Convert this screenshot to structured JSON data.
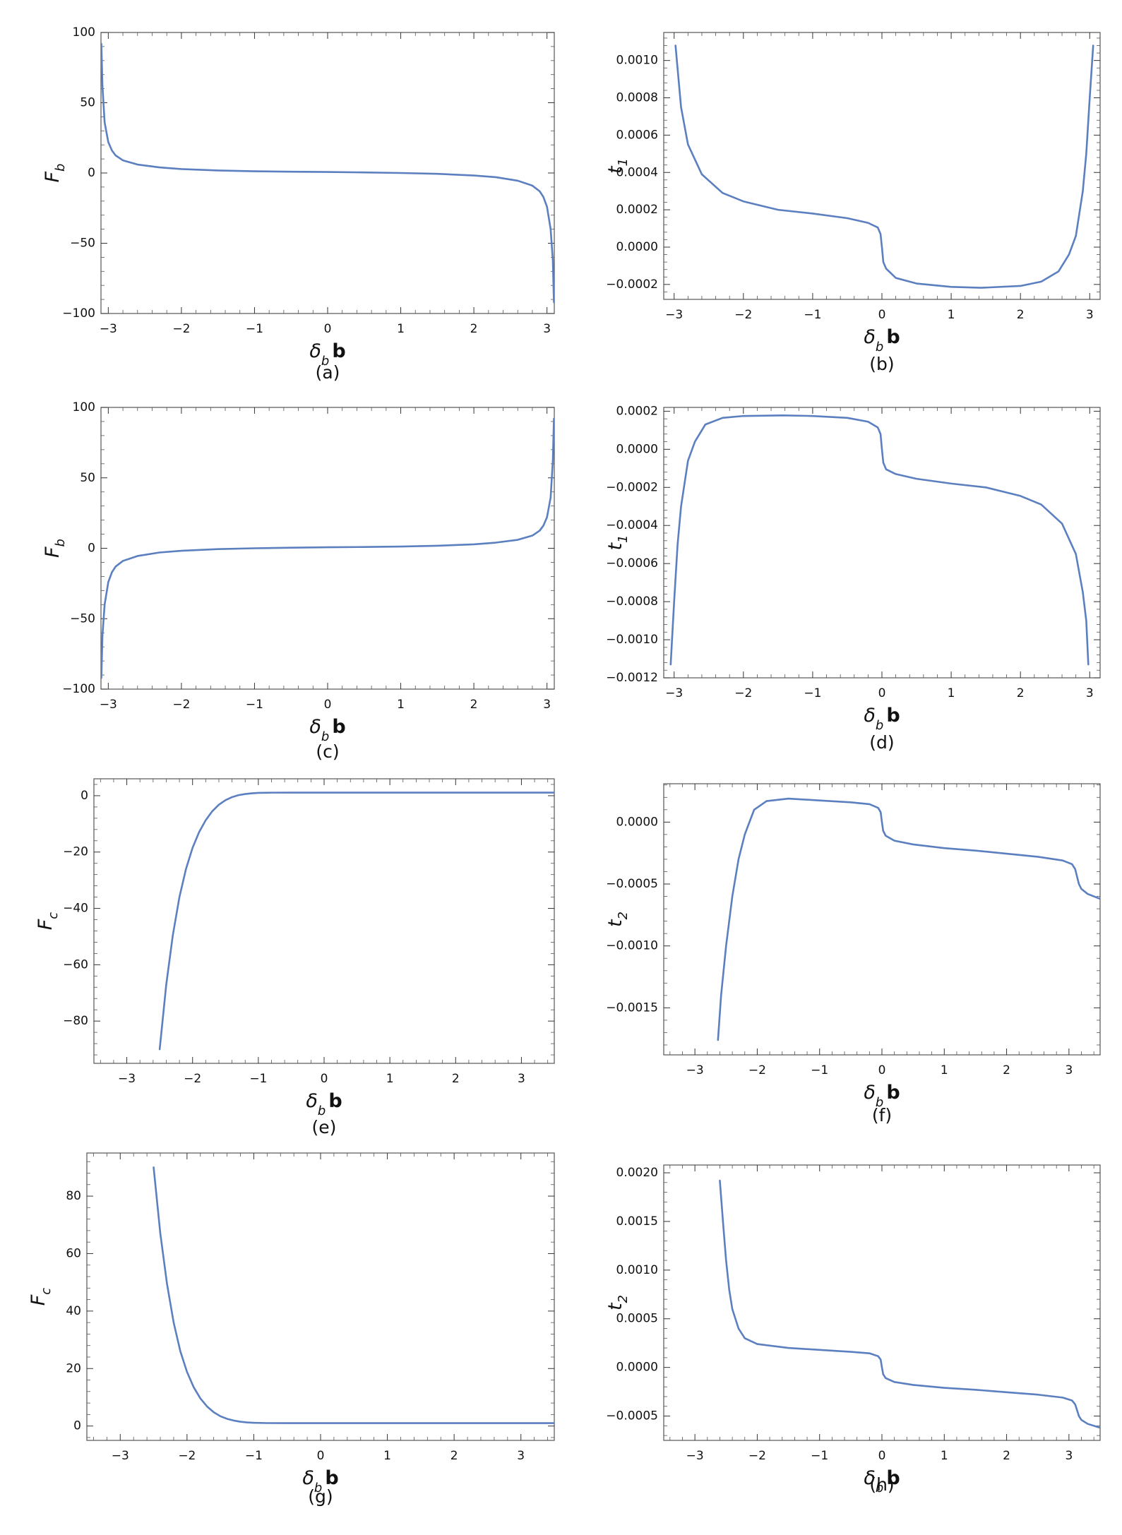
{
  "chart_data": [
    {
      "panel": "(a)",
      "type": "line",
      "xlabel": "δ_b b",
      "ylabel": "F_b",
      "xlim": [
        -3.1,
        3.1
      ],
      "ylim": [
        -100,
        100
      ],
      "xticks": [
        -3,
        -2,
        -1,
        0,
        1,
        2,
        3
      ],
      "yticks": [
        -100,
        -50,
        0,
        50,
        100
      ],
      "yticklabels": [
        "−100",
        "−50",
        "0",
        "50",
        "100"
      ],
      "line_color": "#5b7fbf",
      "series": [
        {
          "x": [
            -3.095,
            -3.08,
            -3.05,
            -3.0,
            -2.95,
            -2.9,
            -2.8,
            -2.6,
            -2.3,
            -2.0,
            -1.5,
            -1.0,
            -0.5,
            0,
            0.5,
            1.0,
            1.5,
            2.0,
            2.3,
            2.6,
            2.8,
            2.9,
            2.95,
            3.0,
            3.05,
            3.08,
            3.095
          ],
          "y": [
            92,
            62,
            36,
            22,
            16,
            12.5,
            9,
            6,
            4,
            2.8,
            1.8,
            1.2,
            0.9,
            0.7,
            0.4,
            0,
            -0.6,
            -1.8,
            -3,
            -5.5,
            -9,
            -13,
            -17,
            -24,
            -40,
            -62,
            -92
          ]
        }
      ]
    },
    {
      "panel": "(b)",
      "type": "line",
      "xlabel": "δ_b b",
      "ylabel": "t_1",
      "xlim": [
        -3.15,
        3.15
      ],
      "ylim": [
        -0.00028,
        0.00115
      ],
      "xticks": [
        -3,
        -2,
        -1,
        0,
        1,
        2,
        3
      ],
      "yticks": [
        -0.0002,
        0.0,
        0.0002,
        0.0004,
        0.0006,
        0.0008,
        0.001
      ],
      "yticklabels": [
        "−0.0002",
        "0.0000",
        "0.0002",
        "0.0004",
        "0.0006",
        "0.0008",
        "0.0010"
      ],
      "line_color": "#5b7fbf",
      "series": [
        {
          "x": [
            -2.98,
            -2.9,
            -2.8,
            -2.6,
            -2.3,
            -2.0,
            -1.5,
            -1.0,
            -0.5,
            -0.2,
            -0.06,
            -0.02,
            0.0,
            0.02,
            0.06,
            0.2,
            0.5,
            1.0,
            1.43,
            2.0,
            2.3,
            2.55,
            2.7,
            2.8,
            2.9,
            2.95,
            3.0,
            3.05
          ],
          "y": [
            0.00108,
            0.00075,
            0.00055,
            0.00039,
            0.00029,
            0.000245,
            0.0002,
            0.00018,
            0.000155,
            0.00013,
            0.000105,
            7e-05,
            0.0,
            -8e-05,
            -0.000115,
            -0.000165,
            -0.000195,
            -0.000213,
            -0.000218,
            -0.000208,
            -0.000185,
            -0.00013,
            -4e-05,
            6e-05,
            0.0003,
            0.0005,
            0.0008,
            0.00108
          ]
        }
      ]
    },
    {
      "panel": "(c)",
      "type": "line",
      "xlabel": "δ_b b",
      "ylabel": "F_b",
      "xlim": [
        -3.1,
        3.1
      ],
      "ylim": [
        -100,
        100
      ],
      "xticks": [
        -3,
        -2,
        -1,
        0,
        1,
        2,
        3
      ],
      "yticks": [
        -100,
        -50,
        0,
        50,
        100
      ],
      "yticklabels": [
        "−100",
        "−50",
        "0",
        "50",
        "100"
      ],
      "line_color": "#5b7fbf",
      "series": [
        {
          "x": [
            -3.095,
            -3.08,
            -3.05,
            -3.0,
            -2.95,
            -2.9,
            -2.8,
            -2.6,
            -2.3,
            -2.0,
            -1.5,
            -1.0,
            -0.5,
            0,
            0.5,
            1.0,
            1.5,
            2.0,
            2.3,
            2.6,
            2.8,
            2.9,
            2.95,
            3.0,
            3.05,
            3.08,
            3.095
          ],
          "y": [
            -92,
            -62,
            -40,
            -24,
            -17,
            -13,
            -9,
            -5.5,
            -3,
            -1.8,
            -0.6,
            0,
            0.4,
            0.7,
            0.9,
            1.2,
            1.8,
            2.8,
            4,
            6,
            9,
            12.5,
            16,
            22,
            36,
            62,
            92
          ]
        }
      ]
    },
    {
      "panel": "(d)",
      "type": "line",
      "xlabel": "δ_b b",
      "ylabel": "t_1",
      "xlim": [
        -3.15,
        3.15
      ],
      "ylim": [
        -0.0012,
        0.00022
      ],
      "xticks": [
        -3,
        -2,
        -1,
        0,
        1,
        2,
        3
      ],
      "yticks": [
        -0.0012,
        -0.001,
        -0.0008,
        -0.0006,
        -0.0004,
        -0.0002,
        0.0,
        0.0002
      ],
      "yticklabels": [
        "−0.0012",
        "−0.0010",
        "−0.0008",
        "−0.0006",
        "−0.0004",
        "−0.0002",
        "0.0000",
        "0.0002"
      ],
      "line_color": "#5b7fbf",
      "series": [
        {
          "x": [
            -3.05,
            -3.0,
            -2.95,
            -2.9,
            -2.8,
            -2.7,
            -2.55,
            -2.3,
            -2.0,
            -1.43,
            -1.0,
            -0.5,
            -0.2,
            -0.06,
            -0.02,
            0.0,
            0.02,
            0.06,
            0.2,
            0.5,
            1.0,
            1.5,
            2.0,
            2.3,
            2.6,
            2.8,
            2.9,
            2.95,
            2.98
          ],
          "y": [
            -0.00113,
            -0.0008,
            -0.0005,
            -0.0003,
            -6e-05,
            4e-05,
            0.00013,
            0.000165,
            0.000175,
            0.000178,
            0.000175,
            0.000165,
            0.000145,
            0.000115,
            8e-05,
            0.0,
            -7e-05,
            -0.000105,
            -0.00013,
            -0.000155,
            -0.00018,
            -0.0002,
            -0.000245,
            -0.00029,
            -0.00039,
            -0.00055,
            -0.00075,
            -0.0009,
            -0.00113
          ]
        }
      ]
    },
    {
      "panel": "(e)",
      "type": "line",
      "xlabel": "δ_b b",
      "ylabel": "F_c",
      "xlim": [
        -3.5,
        3.5
      ],
      "ylim": [
        -95,
        6
      ],
      "xticks": [
        -3,
        -2,
        -1,
        0,
        1,
        2,
        3
      ],
      "yticks": [
        -80,
        -60,
        -40,
        -20,
        0
      ],
      "yticklabels": [
        "−80",
        "−60",
        "−40",
        "−20",
        "0"
      ],
      "line_color": "#5b7fbf",
      "series": [
        {
          "x": [
            -2.5,
            -2.4,
            -2.3,
            -2.2,
            -2.1,
            -2.0,
            -1.9,
            -1.8,
            -1.7,
            -1.6,
            -1.5,
            -1.4,
            -1.3,
            -1.2,
            -1.1,
            -1.0,
            -0.8,
            -0.5,
            0,
            1,
            2,
            3,
            3.5
          ],
          "y": [
            -90,
            -67,
            -49.5,
            -36,
            -26,
            -18.5,
            -12.9,
            -8.7,
            -5.5,
            -3.2,
            -1.6,
            -0.5,
            0.2,
            0.6,
            0.85,
            1.0,
            1.08,
            1.1,
            1.1,
            1.1,
            1.1,
            1.1,
            1.1
          ]
        }
      ]
    },
    {
      "panel": "(f)",
      "type": "line",
      "xlabel": "δ_b b",
      "ylabel": "t_2",
      "xlim": [
        -3.5,
        3.5
      ],
      "ylim": [
        -0.00188,
        0.00031
      ],
      "xticks": [
        -3,
        -2,
        -1,
        0,
        1,
        2,
        3
      ],
      "yticks": [
        -0.0015,
        -0.001,
        -0.0005,
        0.0
      ],
      "yticklabels": [
        "−0.0015",
        "−0.0010",
        "−0.0005",
        "0.0000"
      ],
      "line_color": "#5b7fbf",
      "series": [
        {
          "x": [
            -2.63,
            -2.58,
            -2.5,
            -2.4,
            -2.3,
            -2.2,
            -2.05,
            -1.85,
            -1.5,
            -1.0,
            -0.5,
            -0.2,
            -0.06,
            -0.02,
            0.0,
            0.02,
            0.06,
            0.2,
            0.5,
            1.0,
            1.5,
            2.0,
            2.5,
            2.9,
            3.05,
            3.1,
            3.13,
            3.16,
            3.2,
            3.3,
            3.5
          ],
          "y": [
            -0.00176,
            -0.0014,
            -0.001,
            -0.0006,
            -0.0003,
            -0.0001,
            0.0001,
            0.00017,
            0.00019,
            0.000175,
            0.00016,
            0.000145,
            0.000115,
            8e-05,
            0.0,
            -7e-05,
            -0.00011,
            -0.00015,
            -0.00018,
            -0.00021,
            -0.00023,
            -0.000255,
            -0.00028,
            -0.00031,
            -0.00034,
            -0.00038,
            -0.00044,
            -0.0005,
            -0.00054,
            -0.00058,
            -0.00062
          ]
        }
      ]
    },
    {
      "panel": "(g)",
      "type": "line",
      "xlabel": "δ_b b",
      "ylabel": "F_c",
      "xlim": [
        -3.5,
        3.5
      ],
      "ylim": [
        -5,
        95
      ],
      "xticks": [
        -3,
        -2,
        -1,
        0,
        1,
        2,
        3
      ],
      "yticks": [
        0,
        20,
        40,
        60,
        80
      ],
      "yticklabels": [
        "0",
        "20",
        "40",
        "60",
        "80"
      ],
      "line_color": "#5b7fbf",
      "series": [
        {
          "x": [
            -2.5,
            -2.4,
            -2.3,
            -2.2,
            -2.1,
            -2.0,
            -1.9,
            -1.8,
            -1.7,
            -1.6,
            -1.5,
            -1.4,
            -1.3,
            -1.2,
            -1.1,
            -1.0,
            -0.8,
            -0.5,
            0,
            1,
            2,
            3,
            3.5
          ],
          "y": [
            90,
            67,
            49.5,
            36,
            26,
            18.8,
            13.5,
            9.6,
            6.8,
            4.8,
            3.4,
            2.5,
            1.9,
            1.5,
            1.25,
            1.12,
            1.02,
            1.0,
            1.0,
            1.0,
            1.0,
            1.0,
            1.0
          ]
        }
      ]
    },
    {
      "panel": "(h)",
      "type": "line",
      "xlabel": "δ_b b",
      "ylabel": "t_2",
      "xlim": [
        -3.5,
        3.5
      ],
      "ylim": [
        -0.00075,
        0.00208
      ],
      "xticks": [
        -3,
        -2,
        -1,
        0,
        1,
        2,
        3
      ],
      "yticks": [
        -0.0005,
        0.0,
        0.0005,
        0.001,
        0.0015,
        0.002
      ],
      "yticklabels": [
        "−0.0005",
        "0.0000",
        "0.0005",
        "0.0010",
        "0.0015",
        "0.0020"
      ],
      "line_color": "#5b7fbf",
      "series": [
        {
          "x": [
            -2.6,
            -2.55,
            -2.5,
            -2.45,
            -2.4,
            -2.3,
            -2.2,
            -2.0,
            -1.5,
            -1.0,
            -0.5,
            -0.2,
            -0.06,
            -0.02,
            0.0,
            0.02,
            0.06,
            0.2,
            0.5,
            1.0,
            1.5,
            2.0,
            2.5,
            2.9,
            3.05,
            3.1,
            3.13,
            3.16,
            3.2,
            3.3,
            3.5
          ],
          "y": [
            0.00192,
            0.0015,
            0.0011,
            0.0008,
            0.0006,
            0.0004,
            0.0003,
            0.00024,
            0.0002,
            0.00018,
            0.00016,
            0.000145,
            0.000115,
            8e-05,
            0.0,
            -7e-05,
            -0.00011,
            -0.00015,
            -0.00018,
            -0.00021,
            -0.00023,
            -0.000255,
            -0.00028,
            -0.00031,
            -0.00034,
            -0.00038,
            -0.00044,
            -0.0005,
            -0.00054,
            -0.00058,
            -0.00062
          ]
        }
      ]
    }
  ]
}
